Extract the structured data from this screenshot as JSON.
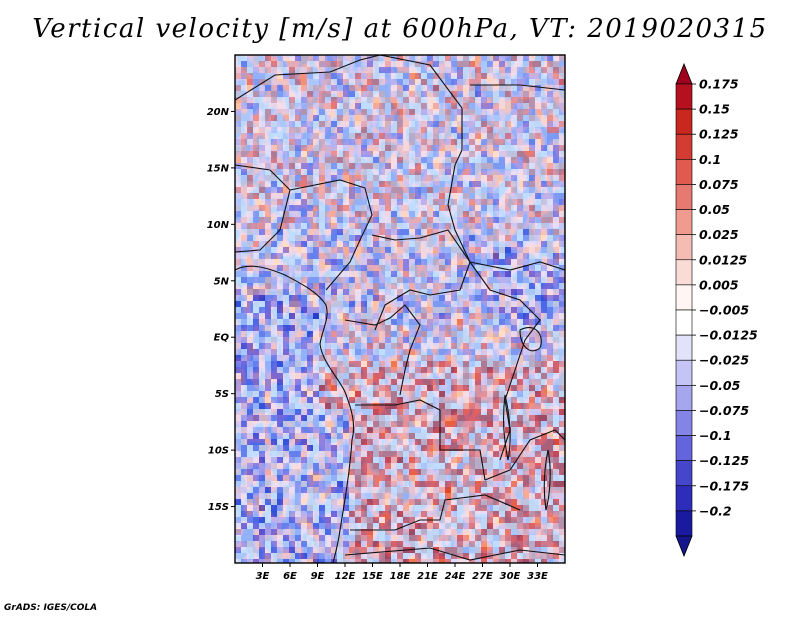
{
  "chart_data": {
    "type": "heatmap",
    "title": "Vertical velocity [m/s] at 600hPa, VT: 2019020315",
    "variable": "Vertical velocity",
    "units": "m/s",
    "level": "600hPa",
    "valid_time": "2019020315",
    "x_axis": {
      "label": "",
      "range": [
        0,
        36
      ],
      "ticks": [
        3,
        6,
        9,
        12,
        15,
        18,
        21,
        24,
        27,
        30,
        33
      ],
      "tick_labels": [
        "3E",
        "6E",
        "9E",
        "12E",
        "15E",
        "18E",
        "21E",
        "24E",
        "27E",
        "30E",
        "33E"
      ]
    },
    "y_axis": {
      "label": "",
      "range": [
        -20,
        25
      ],
      "ticks": [
        20,
        15,
        10,
        5,
        0,
        -5,
        -10,
        -15
      ],
      "tick_labels": [
        "20N",
        "15N",
        "10N",
        "5N",
        "EQ",
        "5S",
        "10S",
        "15S"
      ]
    },
    "colorbar": {
      "orientation": "vertical",
      "position": "right",
      "levels": [
        0.175,
        0.15,
        0.125,
        0.1,
        0.075,
        0.05,
        0.025,
        0.0125,
        0.005,
        -0.005,
        -0.0125,
        -0.025,
        -0.05,
        -0.075,
        -0.1,
        -0.125,
        -0.175,
        -0.2
      ],
      "labels": [
        "0.175",
        "0.15",
        "0.125",
        "0.1",
        "0.075",
        "0.05",
        "0.025",
        "0.0125",
        "0.005",
        "−0.005",
        "−0.0125",
        "−0.025",
        "−0.05",
        "−0.075",
        "−0.1",
        "−0.125",
        "−0.175",
        "−0.2"
      ],
      "colors": [
        "#a0001e",
        "#b4101e",
        "#c8281e",
        "#d23c32",
        "#e15a50",
        "#e67a70",
        "#f09a90",
        "#f5bcb4",
        "#fadcd6",
        "#fff5f2",
        "#ffffff",
        "#e2e2fa",
        "#c4c4f5",
        "#a6a6ef",
        "#8484e6",
        "#6464dc",
        "#4646cd",
        "#2d2db9",
        "#1a1aa0",
        "#14148c"
      ]
    },
    "field_summary": "Mixed positive/negative noise; positive (red) dominant over land south of ~2S and in NE Sahel; negative (blue) dominant over Gulf of Guinea / Atlantic and north of equator belt"
  },
  "footer": {
    "text": "GrADS: IGES/COLA"
  }
}
